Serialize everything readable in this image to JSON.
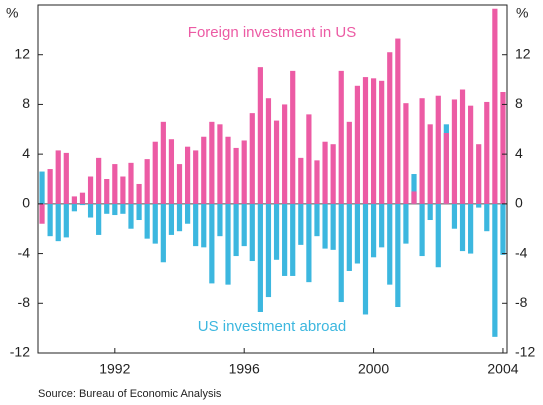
{
  "chart_data": {
    "type": "bar",
    "ylabel": "%",
    "annotations": [
      "Foreign investment in US",
      "US investment abroad"
    ],
    "source": "Source: Bureau of Economic Analysis",
    "categories": [
      null,
      null,
      null,
      null,
      null,
      null,
      null,
      null,
      null,
      "1992",
      null,
      null,
      null,
      null,
      null,
      null,
      null,
      null,
      null,
      null,
      null,
      null,
      null,
      null,
      null,
      "1996",
      null,
      null,
      null,
      null,
      null,
      null,
      null,
      null,
      null,
      null,
      null,
      null,
      null,
      null,
      null,
      "2000",
      null,
      null,
      null,
      null,
      null,
      null,
      null,
      null,
      null,
      null,
      null,
      null,
      null,
      null,
      null,
      "2004"
    ],
    "series": [
      {
        "name": "US investment abroad",
        "color": "#3cb7df",
        "values": [
          2.6,
          -2.6,
          -3.0,
          -2.7,
          -0.6,
          -0.1,
          -1.1,
          -2.5,
          -0.8,
          -0.9,
          -0.8,
          -2.0,
          -1.3,
          -2.8,
          -3.2,
          -4.7,
          -2.5,
          -2.2,
          -1.6,
          -3.4,
          -3.5,
          -6.4,
          -2.6,
          -6.5,
          -4.2,
          -3.4,
          -4.6,
          -8.7,
          -7.5,
          -4.5,
          -5.8,
          -5.8,
          -3.3,
          -6.3,
          -2.6,
          -3.6,
          -3.7,
          -7.9,
          -5.4,
          -4.8,
          -8.9,
          -4.3,
          -3.5,
          -6.5,
          -8.3,
          -3.2,
          2.4,
          -4.2,
          -1.3,
          -5.1,
          6.4,
          -2.0,
          -3.8,
          -4.0,
          -0.3,
          -2.2,
          -10.7,
          -4.1
        ]
      },
      {
        "name": "Foreign investment in US",
        "color": "#ec5ba4",
        "values": [
          -1.6,
          2.8,
          4.3,
          4.1,
          0.6,
          0.9,
          2.2,
          3.7,
          2.0,
          3.2,
          2.2,
          3.3,
          1.6,
          3.6,
          5.0,
          6.6,
          5.2,
          3.2,
          4.6,
          4.3,
          5.4,
          6.6,
          6.4,
          5.4,
          4.5,
          5.1,
          7.3,
          11.0,
          8.5,
          6.7,
          8.0,
          10.7,
          3.7,
          7.2,
          3.5,
          5.0,
          4.8,
          10.7,
          6.6,
          9.5,
          10.2,
          10.1,
          9.9,
          12.2,
          13.3,
          8.1,
          1.0,
          8.5,
          6.4,
          8.7,
          5.7,
          8.4,
          9.2,
          7.9,
          4.8,
          8.2,
          15.7,
          9.0
        ]
      }
    ],
    "ylim": [
      -12,
      16
    ],
    "yticks": [
      -12,
      -8,
      -4,
      0,
      4,
      8,
      12
    ]
  }
}
